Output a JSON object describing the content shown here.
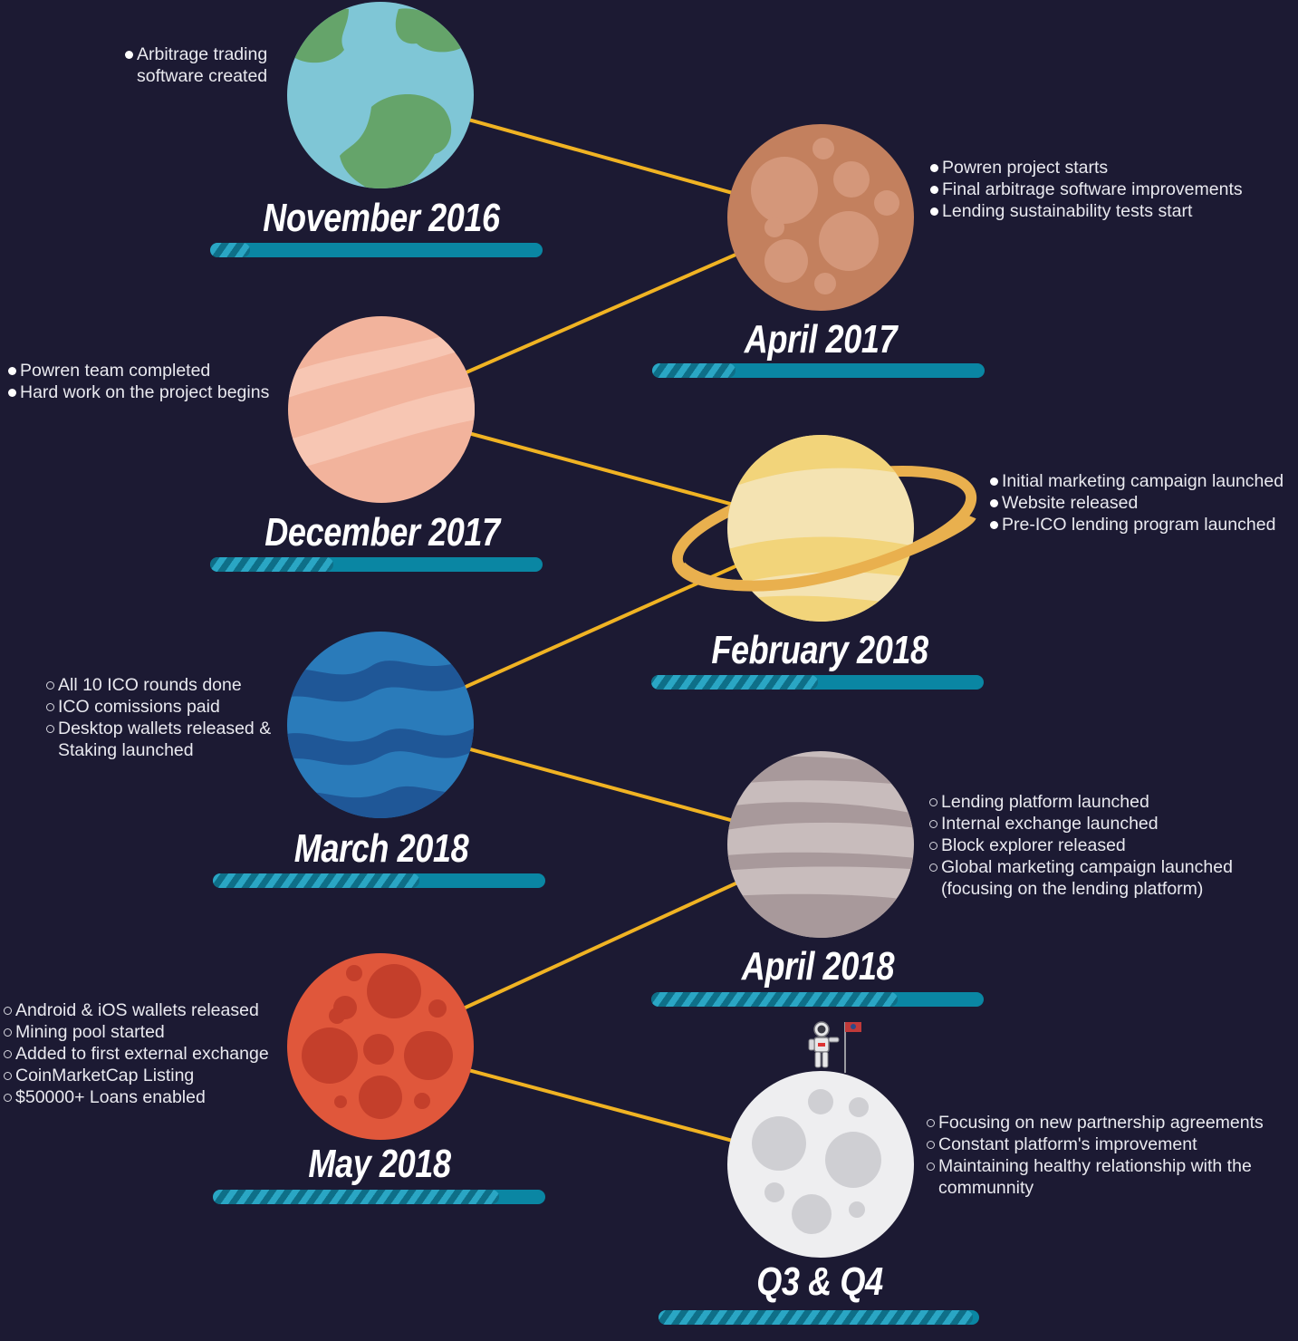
{
  "colors": {
    "background": "#1c1a33",
    "connector": "#f0b323",
    "bar_base": "#0a86a3",
    "bar_stripe_light": "#2aa6c4",
    "bar_stripe_dark": "#0e6f88",
    "text": "#e9e9ef"
  },
  "milestones": [
    {
      "id": "nov2016",
      "title": "November 2016",
      "planet": "earth-icon",
      "bullet": "filled",
      "progress": 0.12,
      "items": [
        "Arbitrage trading",
        "software created"
      ]
    },
    {
      "id": "apr2017",
      "title": "April 2017",
      "planet": "mars-icon",
      "bullet": "filled",
      "progress": 0.25,
      "items": [
        "Powren project starts",
        "Final arbitrage software improvements",
        "Lending sustainability tests start"
      ]
    },
    {
      "id": "dec2017",
      "title": "December 2017",
      "planet": "venus-icon",
      "bullet": "filled",
      "progress": 0.37,
      "items": [
        "Powren team completed",
        "Hard work on the project begins"
      ]
    },
    {
      "id": "feb2018",
      "title": "February 2018",
      "planet": "saturn-icon",
      "bullet": "filled",
      "progress": 0.5,
      "items": [
        "Initial marketing campaign launched",
        "Website released",
        "Pre-ICO lending program launched"
      ]
    },
    {
      "id": "mar2018",
      "title": "March 2018",
      "planet": "neptune-icon",
      "bullet": "hollow",
      "progress": 0.62,
      "items": [
        "All 10 ICO rounds done",
        "ICO comissions paid",
        "Desktop wallets released &",
        "Staking launched"
      ]
    },
    {
      "id": "apr2018",
      "title": "April 2018",
      "planet": "jupiter-icon",
      "bullet": "hollow",
      "progress": 0.74,
      "items": [
        "Lending platform launched",
        "Internal exchange launched",
        "Block explorer released",
        "Global marketing campaign launched",
        "(focusing on the lending platform)"
      ]
    },
    {
      "id": "may2018",
      "title": "May 2018",
      "planet": "red-planet-icon",
      "bullet": "hollow",
      "progress": 0.86,
      "items": [
        "Android & iOS wallets released",
        "Mining pool started",
        "Added to first external exchange",
        "CoinMarketCap Listing",
        "$50000+ Loans enabled"
      ]
    },
    {
      "id": "q3q4",
      "title": "Q3 & Q4",
      "planet": "moon-icon",
      "bullet": "hollow",
      "progress": 0.98,
      "items": [
        "Focusing on new partnership agreements",
        "Constant platform's improvement",
        "Maintaining healthy relationship with the",
        "communnity"
      ]
    }
  ]
}
